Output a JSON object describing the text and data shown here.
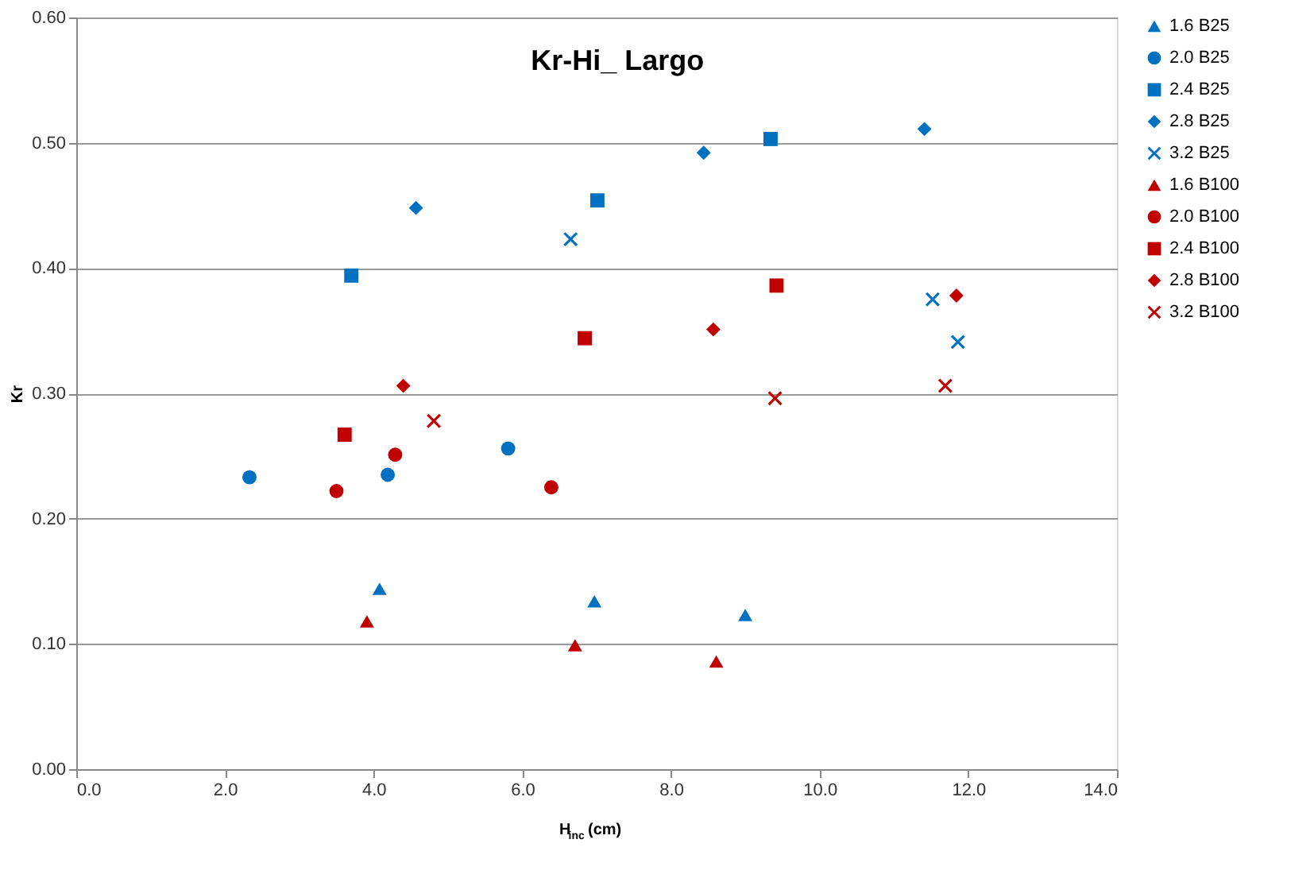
{
  "chart_data": {
    "type": "scatter",
    "title": "Kr-Hi_ Largo",
    "xlabel": "H$_{inc}$ (cm)",
    "ylabel": "Kr",
    "xlim": [
      0,
      14
    ],
    "ylim": [
      0,
      0.6
    ],
    "xticks": [
      {
        "value": 0,
        "label": "0.0"
      },
      {
        "value": 2,
        "label": "2.0"
      },
      {
        "value": 4,
        "label": "4.0"
      },
      {
        "value": 6,
        "label": "6.0"
      },
      {
        "value": 8,
        "label": "8.0"
      },
      {
        "value": 10,
        "label": "10.0"
      },
      {
        "value": 12,
        "label": "12.0"
      },
      {
        "value": 14,
        "label": "14.0"
      }
    ],
    "yticks": [
      {
        "value": 0,
        "label": "0.00"
      },
      {
        "value": 0.1,
        "label": "0.10"
      },
      {
        "value": 0.2,
        "label": "0.20"
      },
      {
        "value": 0.3,
        "label": "0.30"
      },
      {
        "value": 0.4,
        "label": "0.40"
      },
      {
        "value": 0.5,
        "label": "0.50"
      },
      {
        "value": 0.6,
        "label": "0.60"
      }
    ],
    "grid": "y",
    "legend": "right",
    "series": [
      {
        "name": "1.6 B25",
        "color": "#0070c0",
        "marker": "triangle",
        "x": [
          4.08,
          6.97,
          9.0
        ],
        "values": [
          0.144,
          0.134,
          0.123
        ]
      },
      {
        "name": "2.0 B25",
        "color": "#0070c0",
        "marker": "circle",
        "x": [
          2.33,
          4.19,
          5.81
        ],
        "values": [
          0.233,
          0.235,
          0.256
        ]
      },
      {
        "name": "2.4 B25",
        "color": "#0070c0",
        "marker": "square",
        "x": [
          3.7,
          7.01,
          9.34
        ],
        "values": [
          0.394,
          0.454,
          0.503
        ]
      },
      {
        "name": "2.8 B25",
        "color": "#0070c0",
        "marker": "diamond",
        "x": [
          4.57,
          8.44,
          11.41
        ],
        "values": [
          0.448,
          0.492,
          0.511
        ]
      },
      {
        "name": "3.2 B25",
        "color": "#0070c0",
        "marker": "cross",
        "x": [
          6.65,
          11.52,
          11.86
        ],
        "values": [
          0.423,
          0.375,
          0.341
        ]
      },
      {
        "name": "1.6 B100",
        "color": "#c00000",
        "marker": "triangle",
        "x": [
          3.91,
          6.71,
          8.61
        ],
        "values": [
          0.118,
          0.099,
          0.086
        ]
      },
      {
        "name": "2.0 B100",
        "color": "#c00000",
        "marker": "circle",
        "x": [
          3.5,
          4.29,
          6.39
        ],
        "values": [
          0.222,
          0.251,
          0.225
        ]
      },
      {
        "name": "2.4 B100",
        "color": "#c00000",
        "marker": "square",
        "x": [
          3.61,
          6.84,
          9.42
        ],
        "values": [
          0.267,
          0.344,
          0.386
        ]
      },
      {
        "name": "2.8 B100",
        "color": "#c00000",
        "marker": "diamond",
        "x": [
          4.4,
          8.57,
          11.84
        ],
        "values": [
          0.306,
          0.351,
          0.378
        ]
      },
      {
        "name": "3.2 B100",
        "color": "#c00000",
        "marker": "cross",
        "x": [
          4.81,
          9.4,
          11.69
        ],
        "values": [
          0.278,
          0.296,
          0.306
        ]
      }
    ]
  }
}
